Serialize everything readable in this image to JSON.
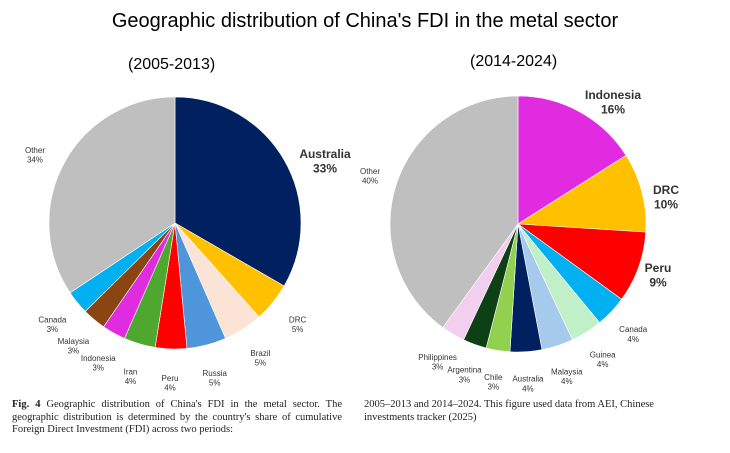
{
  "title": "Geographic distribution of China's FDI in the metal sector",
  "caption": {
    "fig_label": "Fig. 4",
    "left_text": "Geographic distribution of China's FDI in the metal sector. The geographic distribution is determined by the country's share of cumulative Foreign Direct Investment (FDI) across two periods:",
    "right_text": "2005–2013 and 2014–2024. This figure used data from AEI, Chinese investments tracker (2025)"
  },
  "chart_data": [
    {
      "type": "pie",
      "title": "(2005-2013)",
      "start": "12 o'clock, clockwise",
      "slices": [
        {
          "label": "Australia",
          "value": 33,
          "color": "#002060",
          "bold": true
        },
        {
          "label": "DRC",
          "value": 5,
          "color": "#FFC000",
          "bold": false
        },
        {
          "label": "Brazil",
          "value": 5,
          "color": "#FBE3D6",
          "bold": false
        },
        {
          "label": "Russia",
          "value": 5,
          "color": "#4E95D9",
          "bold": false
        },
        {
          "label": "Peru",
          "value": 4,
          "color": "#FF0000",
          "bold": false
        },
        {
          "label": "Iran",
          "value": 4,
          "color": "#4EA72E",
          "bold": false
        },
        {
          "label": "Indonesia",
          "value": 3,
          "color": "#E02BE0",
          "bold": false
        },
        {
          "label": "Malaysia",
          "value": 3,
          "color": "#8B4513",
          "bold": false
        },
        {
          "label": "Canada",
          "value": 3,
          "color": "#00B0F0",
          "bold": false
        },
        {
          "label": "Other",
          "value": 34,
          "color": "#BFBFBF",
          "bold": false
        }
      ]
    },
    {
      "type": "pie",
      "title": "(2014-2024)",
      "start": "12 o'clock, clockwise",
      "slices": [
        {
          "label": "Indonesia",
          "value": 16,
          "color": "#E02BE0",
          "bold": true
        },
        {
          "label": "DRC",
          "value": 10,
          "color": "#FFC000",
          "bold": true
        },
        {
          "label": "Peru",
          "value": 9,
          "color": "#FF0000",
          "bold": true
        },
        {
          "label": "Canada",
          "value": 4,
          "color": "#00B0F0",
          "bold": false
        },
        {
          "label": "Guinea",
          "value": 4,
          "color": "#C1F0C8",
          "bold": false
        },
        {
          "label": "Malaysia",
          "value": 4,
          "color": "#A6CAEC",
          "bold": false
        },
        {
          "label": "Australia",
          "value": 4,
          "color": "#002060",
          "bold": false
        },
        {
          "label": "Chile",
          "value": 3,
          "color": "#92D050",
          "bold": false
        },
        {
          "label": "Argentina",
          "value": 3,
          "color": "#0E4016",
          "bold": false
        },
        {
          "label": "Philippines",
          "value": 3,
          "color": "#F2CEEF",
          "bold": false
        },
        {
          "label": "Other",
          "value": 40,
          "color": "#BFBFBF",
          "bold": false
        }
      ]
    }
  ]
}
